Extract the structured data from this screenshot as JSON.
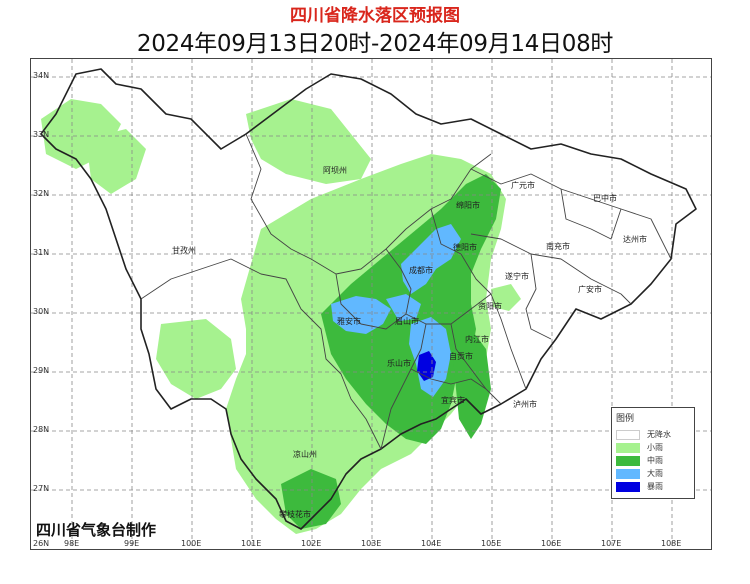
{
  "title": "四川省降水落区预报图",
  "subtitle": "2024年09月13日20时-2024年09月14日08时",
  "credit": "四川省气象台制作",
  "axes": {
    "lat_labels": [
      "34N",
      "33N",
      "32N",
      "31N",
      "30N",
      "29N",
      "28N",
      "27N",
      "26N"
    ],
    "lon_labels": [
      "98E",
      "99E",
      "100E",
      "101E",
      "102E",
      "103E",
      "104E",
      "105E",
      "106E",
      "107E",
      "108E"
    ]
  },
  "legend": {
    "title": "图例",
    "items": [
      {
        "label": "无降水",
        "color": "#ffffff"
      },
      {
        "label": "小雨",
        "color": "#a6f28f"
      },
      {
        "label": "中雨",
        "color": "#3dba3d"
      },
      {
        "label": "大雨",
        "color": "#61b8ff"
      },
      {
        "label": "暴雨",
        "color": "#0000e1"
      }
    ]
  },
  "cities": [
    {
      "name": "阿坝州"
    },
    {
      "name": "广元市"
    },
    {
      "name": "巴中市"
    },
    {
      "name": "绵阳市"
    },
    {
      "name": "甘孜州"
    },
    {
      "name": "德阳市"
    },
    {
      "name": "南充市"
    },
    {
      "name": "达州市"
    },
    {
      "name": "成都市"
    },
    {
      "name": "遂宁市"
    },
    {
      "name": "资阳市"
    },
    {
      "name": "广安市"
    },
    {
      "name": "雅安市"
    },
    {
      "name": "眉山市"
    },
    {
      "name": "内江市"
    },
    {
      "name": "乐山市"
    },
    {
      "name": "自贡市"
    },
    {
      "name": "宜宾市"
    },
    {
      "name": "泸州市"
    },
    {
      "name": "凉山州"
    },
    {
      "name": "攀枝花市"
    }
  ],
  "colors": {
    "light_rain": "#a6f28f",
    "moderate_rain": "#3dba3d",
    "heavy_rain": "#61b8ff",
    "rainstorm": "#0000e1",
    "title": "#d9261c"
  }
}
